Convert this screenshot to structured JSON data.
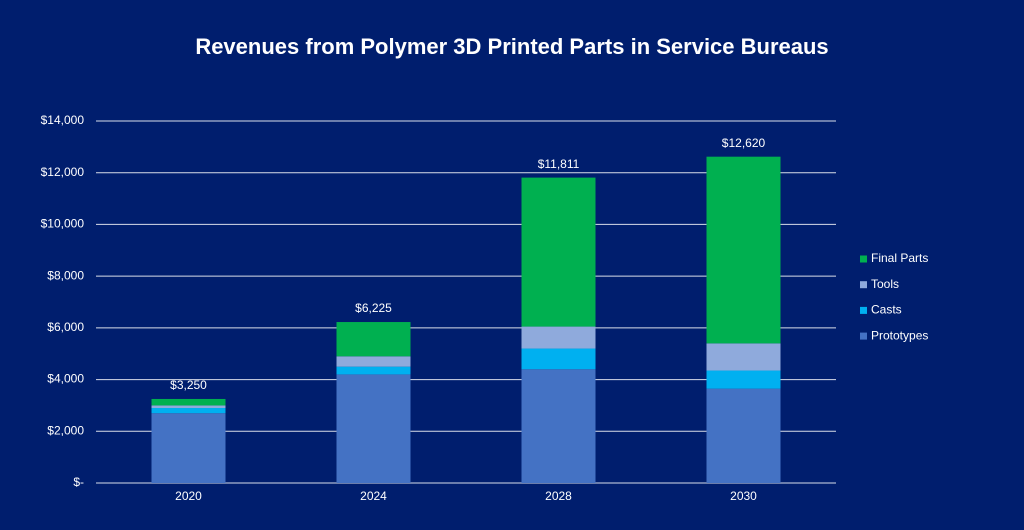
{
  "chart_data": {
    "type": "stacked_bar",
    "title": "Revenues from Polymer 3D Printed Parts in Service Bureaus",
    "categories": [
      "2020",
      "2024",
      "2028",
      "2030"
    ],
    "series": [
      {
        "name": "Prototypes",
        "color": "#4472c4",
        "values": [
          2700,
          4200,
          4400,
          3650
        ]
      },
      {
        "name": "Casts",
        "color": "#00b0f0",
        "values": [
          200,
          300,
          800,
          700
        ]
      },
      {
        "name": "Tools",
        "color": "#8faadc",
        "values": [
          100,
          400,
          850,
          1050
        ]
      },
      {
        "name": "Final Parts",
        "color": "#00b050",
        "values": [
          250,
          1325,
          5761,
          7220
        ]
      }
    ],
    "totals": {
      "values": [
        3250,
        6225,
        11811,
        12620
      ],
      "value_labels": [
        "$3,250",
        "$6,225",
        "$11,811",
        "$12,620"
      ]
    },
    "ylim": [
      0,
      14000
    ],
    "yticks": [
      {
        "value": 0,
        "label": "$-"
      },
      {
        "value": 2000,
        "label": "$2,000"
      },
      {
        "value": 4000,
        "label": "$4,000"
      },
      {
        "value": 6000,
        "label": "$6,000"
      },
      {
        "value": 8000,
        "label": "$8,000"
      },
      {
        "value": 10000,
        "label": "$10,000"
      },
      {
        "value": 12000,
        "label": "$12,000"
      },
      {
        "value": 14000,
        "label": "$14,000"
      }
    ],
    "grid": true,
    "legend": "right"
  }
}
